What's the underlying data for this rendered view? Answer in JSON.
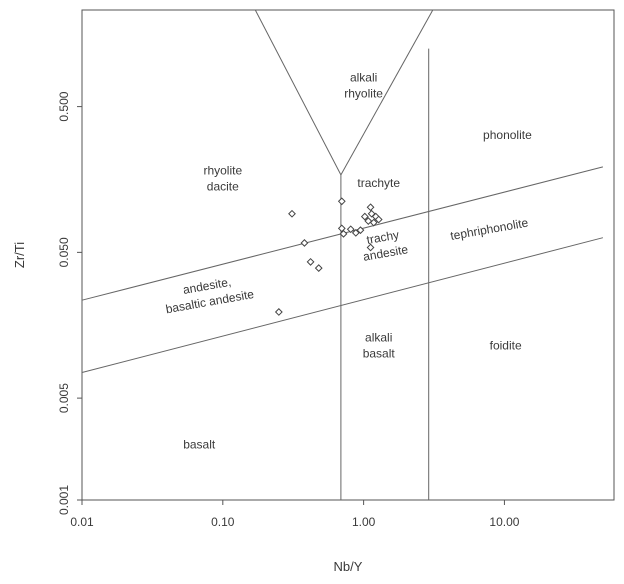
{
  "chart_data": {
    "type": "scatter",
    "title": "",
    "xlabel": "Nb/Y",
    "ylabel": "Zr/Ti",
    "xscale": "log",
    "yscale": "log",
    "xlim": [
      0.01,
      60
    ],
    "ylim": [
      0.001,
      2.3
    ],
    "grid": false,
    "xticks": [
      {
        "value": 0.01,
        "label": "0.01"
      },
      {
        "value": 0.1,
        "label": "0.10"
      },
      {
        "value": 1,
        "label": "1.00"
      },
      {
        "value": 10,
        "label": "10.00"
      }
    ],
    "yticks": [
      {
        "value": 0.001,
        "label": "0.001"
      },
      {
        "value": 0.005,
        "label": "0.005"
      },
      {
        "value": 0.05,
        "label": "0.050"
      },
      {
        "value": 0.5,
        "label": "0.500"
      }
    ],
    "field_boundaries": [
      {
        "points": [
          [
            0.17,
            2.3
          ],
          [
            0.69,
            0.17
          ]
        ]
      },
      {
        "points": [
          [
            0.69,
            0.17
          ],
          [
            3.1,
            2.3
          ]
        ]
      },
      {
        "points": [
          [
            0.69,
            0.001
          ],
          [
            0.69,
            0.17
          ]
        ]
      },
      {
        "points": [
          [
            2.9,
            0.001
          ],
          [
            2.9,
            1.25
          ]
        ]
      },
      {
        "points": [
          [
            0.01,
            0.0235
          ],
          [
            50,
            0.193
          ]
        ]
      },
      {
        "points": [
          [
            0.01,
            0.0075
          ],
          [
            50,
            0.063
          ]
        ]
      }
    ],
    "fields": [
      {
        "lines": [
          "alkali",
          "rhyolite"
        ],
        "x": 1.0,
        "y": 0.7,
        "angle": 0
      },
      {
        "lines": [
          "phonolite"
        ],
        "x": 10.5,
        "y": 0.32,
        "angle": 0
      },
      {
        "lines": [
          "rhyolite",
          "dacite"
        ],
        "x": 0.1,
        "y": 0.16,
        "angle": 0
      },
      {
        "lines": [
          "trachyte"
        ],
        "x": 1.28,
        "y": 0.15,
        "angle": 0
      },
      {
        "lines": [
          "tephriphonolite"
        ],
        "x": 7.8,
        "y": 0.072,
        "angle": -10
      },
      {
        "lines": [
          "trachy",
          "andesite"
        ],
        "x": 1.4,
        "y": 0.056,
        "angle": -10
      },
      {
        "lines": [
          "andesite,",
          "basaltic andesite"
        ],
        "x": 0.079,
        "y": 0.026,
        "angle": -10
      },
      {
        "lines": [
          "alkali",
          "basalt"
        ],
        "x": 1.28,
        "y": 0.0115,
        "angle": 0
      },
      {
        "lines": [
          "foidite"
        ],
        "x": 10.2,
        "y": 0.0115,
        "angle": 0
      },
      {
        "lines": [
          "basalt"
        ],
        "x": 0.068,
        "y": 0.0024,
        "angle": 0
      }
    ],
    "series": [
      {
        "points": [
          [
            0.31,
            0.092
          ],
          [
            0.38,
            0.058
          ],
          [
            0.42,
            0.043
          ],
          [
            0.48,
            0.039
          ],
          [
            0.25,
            0.0195
          ],
          [
            0.7,
            0.112
          ],
          [
            0.7,
            0.073
          ],
          [
            0.72,
            0.067
          ],
          [
            0.81,
            0.072
          ],
          [
            0.88,
            0.068
          ],
          [
            0.95,
            0.071
          ],
          [
            1.02,
            0.088
          ],
          [
            1.08,
            0.082
          ],
          [
            1.12,
            0.102
          ],
          [
            1.14,
            0.092
          ],
          [
            1.18,
            0.08
          ],
          [
            1.22,
            0.088
          ],
          [
            1.28,
            0.084
          ],
          [
            1.12,
            0.054
          ]
        ]
      }
    ]
  }
}
